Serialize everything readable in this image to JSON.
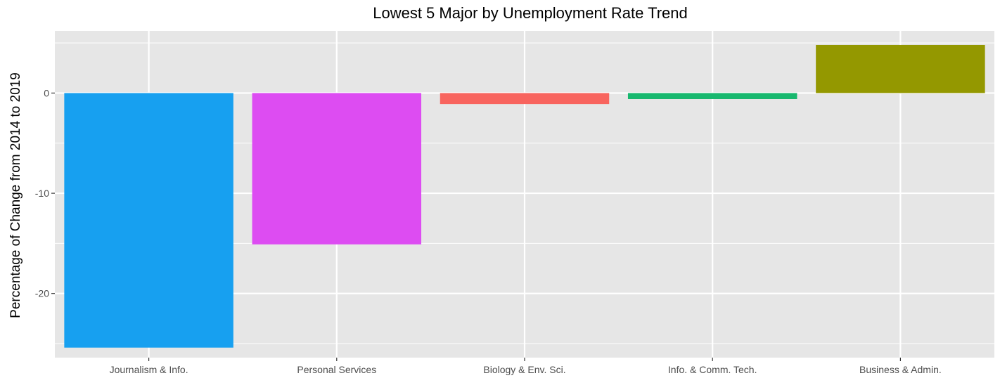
{
  "chart_data": {
    "type": "bar",
    "title": "Lowest 5 Major by Unemployment Rate Trend",
    "xlabel": "",
    "ylabel": "Percentage of Change from 2014 to 2019",
    "ylim": [
      -26.4,
      6.2
    ],
    "yticks": [
      0,
      -10,
      -20
    ],
    "grid": true,
    "categories": [
      "Journalism & Info.",
      "Personal Services",
      "Biology & Env. Sci.",
      "Info. & Comm. Tech.",
      "Business & Admin."
    ],
    "values": [
      -25.4,
      -15.1,
      -1.1,
      -0.6,
      4.8
    ],
    "colors": [
      "#17A0F0",
      "#DD4CF2",
      "#F8645E",
      "#17B86E",
      "#949800"
    ],
    "panel_background": "#E6E6E6",
    "grid_color": "#FFFFFF"
  }
}
